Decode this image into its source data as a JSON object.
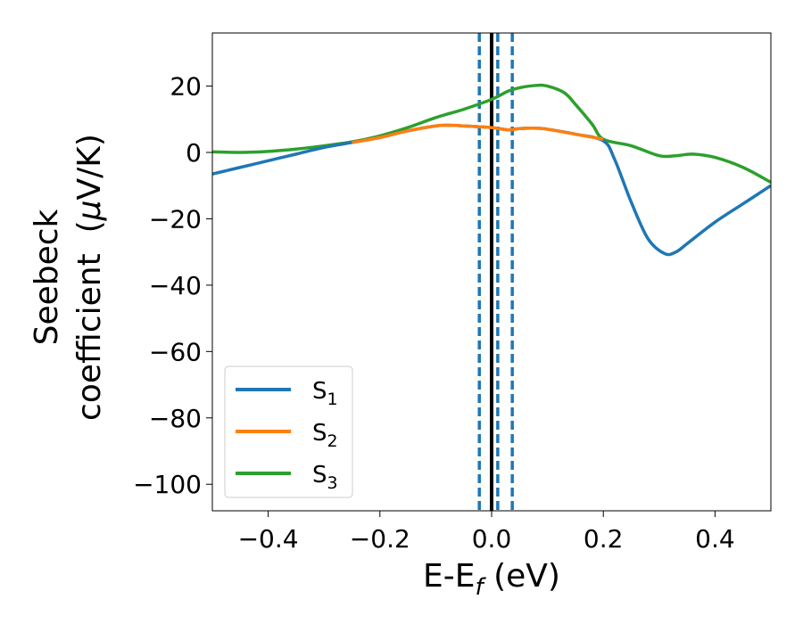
{
  "chart_data": {
    "type": "line",
    "xlabel": "E-E",
    "xlabel_sub": "f",
    "xlabel_unit": "(eV)",
    "ylabel_line1": "Seebeck",
    "ylabel_line2": "coefficient  (",
    "ylabel_mu": "μ",
    "ylabel_unit": "V/K)",
    "xlim": [
      -0.5,
      0.5
    ],
    "ylim": [
      -108,
      36
    ],
    "xticks": [
      -0.4,
      -0.2,
      0.0,
      0.2,
      0.4
    ],
    "xtick_labels": [
      "−0.4",
      "−0.2",
      "0.0",
      "0.2",
      "0.4"
    ],
    "yticks": [
      20,
      0,
      -20,
      -40,
      -60,
      -80,
      -100
    ],
    "ytick_labels": [
      "20",
      "0",
      "−20",
      "−40",
      "−60",
      "−80",
      "−100"
    ],
    "grid": false,
    "legend_position": "lower-left",
    "vertical_lines": [
      {
        "x": 0.0,
        "style": "solid",
        "color": "#000000"
      },
      {
        "x": -0.022,
        "style": "dashed",
        "color": "#1f77b4"
      },
      {
        "x": 0.011,
        "style": "dashed",
        "color": "#1f77b4"
      },
      {
        "x": 0.037,
        "style": "dashed",
        "color": "#1f77b4"
      }
    ],
    "series": [
      {
        "name": "S",
        "sub": "1",
        "color": "#1f77b4",
        "x": [
          -0.5,
          -0.45,
          -0.4,
          -0.35,
          -0.3,
          -0.25,
          -0.2,
          -0.15,
          -0.1,
          -0.08,
          -0.05,
          0.0,
          0.03,
          0.05,
          0.08,
          0.1,
          0.15,
          0.2,
          0.22,
          0.25,
          0.28,
          0.31,
          0.33,
          0.35,
          0.4,
          0.45,
          0.5
        ],
        "y": [
          -6.5,
          -4.5,
          -2.5,
          -0.5,
          1.5,
          3.0,
          4.5,
          6.5,
          8.0,
          8.2,
          8.0,
          7.5,
          6.8,
          7.2,
          7.3,
          7.0,
          5.5,
          3.5,
          -2.0,
          -15.0,
          -26.0,
          -30.5,
          -30.0,
          -27.5,
          -21.0,
          -15.5,
          -10.0
        ]
      },
      {
        "name": "S",
        "sub": "2",
        "color": "#ff7f0e",
        "x": [
          -0.25,
          -0.2,
          -0.15,
          -0.1,
          -0.08,
          -0.05,
          0.0,
          0.03,
          0.05,
          0.08,
          0.1,
          0.15,
          0.2
        ],
        "y": [
          3.0,
          4.5,
          6.5,
          8.0,
          8.2,
          8.0,
          7.5,
          6.8,
          7.2,
          7.3,
          7.0,
          5.5,
          4.0
        ]
      },
      {
        "name": "S",
        "sub": "3",
        "color": "#2ca02c",
        "x": [
          -0.5,
          -0.45,
          -0.4,
          -0.35,
          -0.3,
          -0.25,
          -0.2,
          -0.15,
          -0.1,
          -0.05,
          0.0,
          0.03,
          0.05,
          0.08,
          0.1,
          0.13,
          0.15,
          0.18,
          0.2,
          0.25,
          0.3,
          0.33,
          0.36,
          0.4,
          0.45,
          0.5
        ],
        "y": [
          0.2,
          0.0,
          0.3,
          1.0,
          2.0,
          3.2,
          5.0,
          7.5,
          10.5,
          13.0,
          16.0,
          18.5,
          19.5,
          20.2,
          20.0,
          18.0,
          14.5,
          8.5,
          4.0,
          2.0,
          -1.0,
          -1.0,
          -0.5,
          -1.5,
          -4.5,
          -9.0
        ]
      }
    ]
  }
}
